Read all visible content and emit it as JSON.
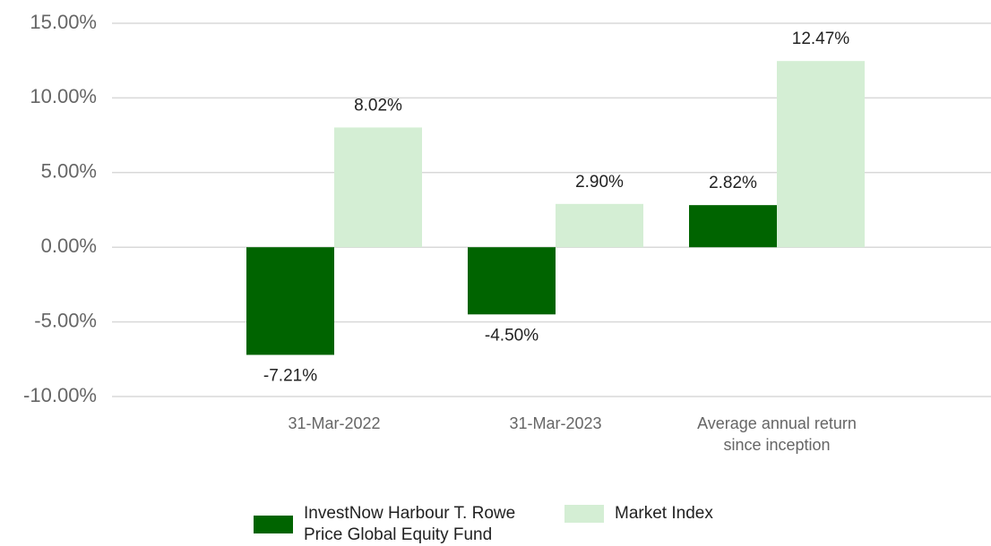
{
  "chart_data": {
    "type": "bar",
    "categories": [
      "31-Mar-2022",
      "31-Mar-2023",
      "Average annual return since inception"
    ],
    "series": [
      {
        "name": "InvestNow Harbour T. Rowe Price Global Equity Fund",
        "color": "#006400",
        "values": [
          -7.21,
          -4.5,
          2.82
        ],
        "value_labels": [
          "-7.21%",
          "-4.50%",
          "2.82%"
        ]
      },
      {
        "name": "Market Index",
        "color": "#d4eed4",
        "values": [
          8.02,
          2.9,
          12.47
        ],
        "value_labels": [
          "8.02%",
          "2.90%",
          "12.47%"
        ]
      }
    ],
    "ylim": [
      -10,
      15
    ],
    "yticks": [
      {
        "value": -10,
        "label": "-10.00%"
      },
      {
        "value": -5,
        "label": "-5.00%"
      },
      {
        "value": 0,
        "label": "0.00%"
      },
      {
        "value": 5,
        "label": "5.00%"
      },
      {
        "value": 10,
        "label": "10.00%"
      },
      {
        "value": 15,
        "label": "15.00%"
      }
    ],
    "grid": true,
    "legend": "bottom"
  }
}
